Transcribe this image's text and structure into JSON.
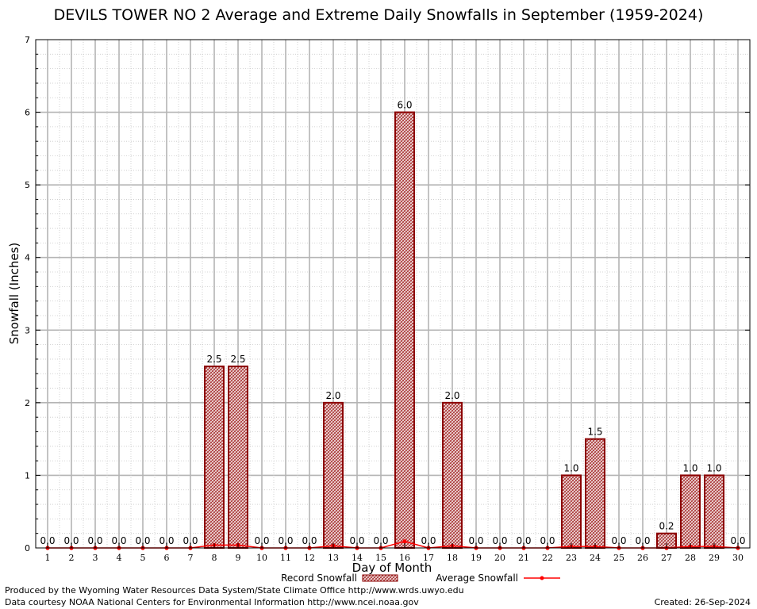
{
  "chart_data": {
    "type": "bar",
    "title": "DEVILS TOWER NO 2 Average and Extreme Daily Snowfalls in September (1959-2024)",
    "xlabel": "Day of Month",
    "ylabel": "Snowfall (Inches)",
    "ylim": [
      0,
      7
    ],
    "yticks": [
      "0",
      "1",
      "2",
      "3",
      "4",
      "5",
      "6",
      "7"
    ],
    "grid": true,
    "legend_position": "bottom",
    "categories": [
      "1",
      "2",
      "3",
      "4",
      "5",
      "6",
      "7",
      "8",
      "9",
      "10",
      "11",
      "12",
      "13",
      "14",
      "15",
      "16",
      "17",
      "18",
      "19",
      "20",
      "21",
      "22",
      "23",
      "24",
      "25",
      "26",
      "27",
      "28",
      "29",
      "30"
    ],
    "series": [
      {
        "name": "Record Snowfall",
        "type": "bar",
        "values": [
          0,
          0,
          0,
          0,
          0,
          0,
          0,
          2.5,
          2.5,
          0,
          0,
          0,
          2.0,
          0,
          0,
          6.0,
          0,
          2.0,
          0,
          0,
          0,
          0,
          1.0,
          1.5,
          0,
          0,
          0.2,
          1.0,
          1.0,
          0
        ],
        "labels": [
          "0.0",
          "0.0",
          "0.0",
          "0.0",
          "0.0",
          "0.0",
          "0.0",
          "2.5",
          "2.5",
          "0.0",
          "0.0",
          "0.0",
          "2.0",
          "0.0",
          "0.0",
          "6.0",
          "0.0",
          "2.0",
          "0.0",
          "0.0",
          "0.0",
          "0.0",
          "1.0",
          "1.5",
          "0.0",
          "0.0",
          "0.2",
          "1.0",
          "1.0",
          "0.0"
        ]
      },
      {
        "name": "Average Snowfall",
        "type": "line",
        "values": [
          0,
          0,
          0,
          0,
          0,
          0,
          0,
          0.04,
          0.04,
          0,
          0,
          0,
          0.03,
          0,
          0,
          0.09,
          0,
          0.03,
          0,
          0,
          0,
          0,
          0.02,
          0.02,
          0,
          0,
          0,
          0.02,
          0.02,
          0
        ]
      }
    ]
  },
  "footer": {
    "credit_line1": "Produced by the Wyoming Water Resources Data System/State Climate Office http://www.wrds.uwyo.edu",
    "credit_line2": "Data courtesy NOAA National Centers for Environmental Information http://www.ncei.noaa.gov",
    "created": "Created:  26-Sep-2024"
  },
  "colors": {
    "bar_stroke": "#8b0000",
    "bar_fill": "#e6c8c8",
    "average_line": "#ff0000",
    "grid_major": "#b4b4b4",
    "grid_minor": "#c8c8c8"
  }
}
